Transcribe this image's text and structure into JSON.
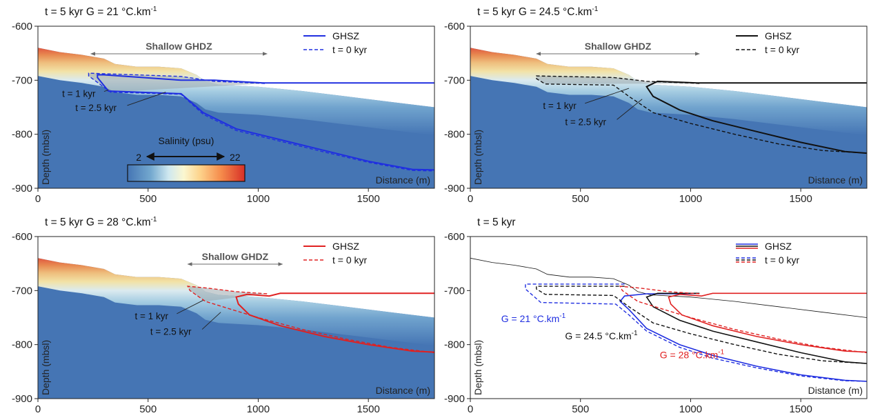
{
  "colors": {
    "sediment": "#4575b4",
    "g21": "#1f2ee0",
    "g24": "#111111",
    "g28": "#e02020",
    "gray": "#6b6b6b"
  },
  "chart_data": [
    {
      "type": "area",
      "title": "t = 5 kyr  G = 21 °C.km",
      "title_sup": "-1",
      "xlabel": "Distance (m)",
      "ylabel": "Depth (mbsl)",
      "xlim": [
        0,
        1800
      ],
      "ylim": [
        -900,
        -600
      ],
      "xticks": [
        "0",
        "500",
        "1000",
        "1500"
      ],
      "yticks": [
        "-600",
        "-700",
        "-800",
        "-900"
      ],
      "series_color": "g21",
      "legend": [
        "GHSZ",
        "t = 0 kyr"
      ],
      "ghdz": {
        "label": "Shallow GHDZ",
        "from": 240,
        "to": 1040
      },
      "seafloor": [
        [
          0,
          -640
        ],
        [
          100,
          -648
        ],
        [
          200,
          -653
        ],
        [
          300,
          -660
        ],
        [
          350,
          -670
        ],
        [
          450,
          -675
        ],
        [
          550,
          -675
        ],
        [
          650,
          -678
        ],
        [
          720,
          -690
        ],
        [
          760,
          -702
        ],
        [
          820,
          -708
        ],
        [
          1000,
          -712
        ],
        [
          1200,
          -720
        ],
        [
          1400,
          -730
        ],
        [
          1600,
          -740
        ],
        [
          1800,
          -750
        ]
      ],
      "ghsz": [
        [
          1800,
          -705
        ],
        [
          1030,
          -705
        ],
        [
          800,
          -700
        ],
        [
          650,
          -700
        ],
        [
          300,
          -690
        ],
        [
          270,
          -690
        ],
        [
          270,
          -695
        ],
        [
          320,
          -720
        ],
        [
          650,
          -725
        ],
        [
          750,
          -760
        ],
        [
          900,
          -790
        ],
        [
          1100,
          -810
        ],
        [
          1300,
          -830
        ],
        [
          1500,
          -850
        ],
        [
          1700,
          -865
        ],
        [
          1800,
          -866
        ]
      ],
      "t0": [
        [
          1030,
          -706
        ],
        [
          800,
          -702
        ],
        [
          650,
          -693
        ],
        [
          230,
          -687
        ],
        [
          230,
          -692
        ],
        [
          330,
          -722
        ],
        [
          650,
          -726
        ],
        [
          750,
          -763
        ],
        [
          900,
          -793
        ],
        [
          1100,
          -813
        ],
        [
          1300,
          -833
        ],
        [
          1500,
          -852
        ],
        [
          1700,
          -867
        ],
        [
          1800,
          -868
        ]
      ],
      "annotations": [
        {
          "text": "t = 1 kyr",
          "x": 110,
          "y": -731,
          "tx": 320,
          "ty": -718
        },
        {
          "text": "t = 2.5 kyr",
          "x": 170,
          "y": -757,
          "tx": 580,
          "ty": -722
        }
      ],
      "colorbar": {
        "title": "Salinity (psu)",
        "min": "2",
        "max": "22"
      }
    },
    {
      "type": "area",
      "title": "t = 5 kyr  G = 24.5 °C.km",
      "title_sup": "-1",
      "xlabel": "Distance (m)",
      "ylabel": "Depth (mbsl)",
      "xlim": [
        0,
        1800
      ],
      "ylim": [
        -900,
        -600
      ],
      "xticks": [
        "0",
        "500",
        "1000",
        "1500"
      ],
      "yticks": [
        "-600",
        "-700",
        "-800",
        "-900"
      ],
      "series_color": "g24",
      "legend": [
        "GHSZ",
        "t = 0 kyr"
      ],
      "ghdz": {
        "label": "Shallow GHDZ",
        "from": 300,
        "to": 1040
      },
      "seafloor": [
        [
          0,
          -640
        ],
        [
          100,
          -648
        ],
        [
          200,
          -653
        ],
        [
          300,
          -660
        ],
        [
          350,
          -670
        ],
        [
          450,
          -675
        ],
        [
          550,
          -675
        ],
        [
          650,
          -678
        ],
        [
          720,
          -690
        ],
        [
          760,
          -702
        ],
        [
          820,
          -708
        ],
        [
          1000,
          -712
        ],
        [
          1200,
          -720
        ],
        [
          1400,
          -730
        ],
        [
          1600,
          -740
        ],
        [
          1800,
          -750
        ]
      ],
      "ghsz": [
        [
          1800,
          -705
        ],
        [
          1030,
          -705
        ],
        [
          850,
          -702
        ],
        [
          800,
          -712
        ],
        [
          830,
          -730
        ],
        [
          950,
          -755
        ],
        [
          1100,
          -775
        ],
        [
          1300,
          -795
        ],
        [
          1500,
          -815
        ],
        [
          1700,
          -832
        ],
        [
          1800,
          -835
        ]
      ],
      "t0": [
        [
          1040,
          -706
        ],
        [
          800,
          -702
        ],
        [
          650,
          -695
        ],
        [
          300,
          -692
        ],
        [
          300,
          -697
        ],
        [
          340,
          -707
        ],
        [
          650,
          -709
        ],
        [
          720,
          -730
        ],
        [
          830,
          -760
        ],
        [
          1000,
          -780
        ],
        [
          1200,
          -800
        ],
        [
          1400,
          -818
        ],
        [
          1600,
          -830
        ],
        [
          1800,
          -835
        ]
      ],
      "annotations": [
        {
          "text": "t = 1 kyr",
          "x": 330,
          "y": -753,
          "tx": 720,
          "ty": -715
        },
        {
          "text": "t = 2.5 kyr",
          "x": 430,
          "y": -783,
          "tx": 780,
          "ty": -735
        }
      ],
      "colorbar": null
    },
    {
      "type": "area",
      "title": "t = 5 kyr  G = 28 °C.km",
      "title_sup": "-1",
      "xlabel": "Distance (m)",
      "ylabel": "Depth (mbsl)",
      "xlim": [
        0,
        1800
      ],
      "ylim": [
        -900,
        -600
      ],
      "xticks": [
        "0",
        "500",
        "1000",
        "1500"
      ],
      "yticks": [
        "-600",
        "-700",
        "-800",
        "-900"
      ],
      "series_color": "g28",
      "legend": [
        "GHSZ",
        "t = 0 kyr"
      ],
      "ghdz": {
        "label": "Shallow GHDZ",
        "from": 680,
        "to": 1110
      },
      "seafloor": [
        [
          0,
          -640
        ],
        [
          100,
          -648
        ],
        [
          200,
          -653
        ],
        [
          300,
          -660
        ],
        [
          350,
          -670
        ],
        [
          450,
          -675
        ],
        [
          550,
          -675
        ],
        [
          650,
          -678
        ],
        [
          720,
          -690
        ],
        [
          760,
          -702
        ],
        [
          820,
          -708
        ],
        [
          1000,
          -712
        ],
        [
          1200,
          -720
        ],
        [
          1400,
          -730
        ],
        [
          1600,
          -740
        ],
        [
          1800,
          -750
        ]
      ],
      "ghsz": [
        [
          1800,
          -705
        ],
        [
          1100,
          -705
        ],
        [
          1050,
          -710
        ],
        [
          950,
          -707
        ],
        [
          900,
          -712
        ],
        [
          910,
          -725
        ],
        [
          960,
          -745
        ],
        [
          1100,
          -765
        ],
        [
          1300,
          -785
        ],
        [
          1500,
          -800
        ],
        [
          1700,
          -812
        ],
        [
          1800,
          -814
        ]
      ],
      "t0": [
        [
          1040,
          -706
        ],
        [
          900,
          -702
        ],
        [
          760,
          -695
        ],
        [
          680,
          -692
        ],
        [
          690,
          -700
        ],
        [
          760,
          -720
        ],
        [
          880,
          -735
        ],
        [
          1000,
          -750
        ],
        [
          1200,
          -772
        ],
        [
          1400,
          -790
        ],
        [
          1600,
          -805
        ],
        [
          1800,
          -815
        ]
      ],
      "annotations": [
        {
          "text": "t = 1 kyr",
          "x": 440,
          "y": -753,
          "tx": 750,
          "ty": -718
        },
        {
          "text": "t = 2.5 kyr",
          "x": 510,
          "y": -782,
          "tx": 830,
          "ty": -740
        }
      ],
      "colorbar": null
    },
    {
      "type": "line",
      "title": "t = 5 kyr",
      "title_sup": "",
      "xlabel": "Distance (m)",
      "ylabel": "Depth (mbsl)",
      "xlim": [
        0,
        1800
      ],
      "ylim": [
        -900,
        -600
      ],
      "xticks": [
        "0",
        "500",
        "1000",
        "1500"
      ],
      "yticks": [
        "-600",
        "-700",
        "-800",
        "-900"
      ],
      "legend": [
        "GHSZ",
        "t = 0 kyr"
      ],
      "seafloor": [
        [
          0,
          -640
        ],
        [
          100,
          -648
        ],
        [
          200,
          -653
        ],
        [
          300,
          -660
        ],
        [
          350,
          -670
        ],
        [
          450,
          -675
        ],
        [
          550,
          -675
        ],
        [
          650,
          -678
        ],
        [
          720,
          -690
        ],
        [
          760,
          -702
        ],
        [
          820,
          -708
        ],
        [
          1000,
          -712
        ],
        [
          1200,
          -720
        ],
        [
          1400,
          -730
        ],
        [
          1600,
          -740
        ],
        [
          1800,
          -750
        ]
      ],
      "series": [
        {
          "color": "g21",
          "ghsz": [
            [
              1040,
              -705
            ],
            [
              950,
              -706
            ],
            [
              800,
              -706
            ],
            [
              700,
              -710
            ],
            [
              680,
              -720
            ],
            [
              720,
              -735
            ],
            [
              800,
              -770
            ],
            [
              950,
              -800
            ],
            [
              1100,
              -820
            ],
            [
              1300,
              -840
            ],
            [
              1500,
              -856
            ],
            [
              1700,
              -866
            ],
            [
              1800,
              -868
            ]
          ],
          "t0": [
            [
              700,
              -688
            ],
            [
              250,
              -688
            ],
            [
              250,
              -697
            ],
            [
              320,
              -722
            ],
            [
              660,
              -725
            ],
            [
              720,
              -745
            ],
            [
              800,
              -775
            ],
            [
              950,
              -805
            ],
            [
              1100,
              -825
            ],
            [
              1300,
              -843
            ],
            [
              1500,
              -858
            ],
            [
              1700,
              -867
            ],
            [
              1800,
              -868
            ]
          ]
        },
        {
          "color": "g24",
          "ghsz": [
            [
              1040,
              -705
            ],
            [
              850,
              -705
            ],
            [
              800,
              -712
            ],
            [
              830,
              -730
            ],
            [
              950,
              -755
            ],
            [
              1100,
              -775
            ],
            [
              1300,
              -795
            ],
            [
              1500,
              -815
            ],
            [
              1700,
              -832
            ],
            [
              1800,
              -835
            ]
          ],
          "t0": [
            [
              700,
              -692
            ],
            [
              300,
              -692
            ],
            [
              300,
              -697
            ],
            [
              340,
              -707
            ],
            [
              650,
              -709
            ],
            [
              720,
              -730
            ],
            [
              830,
              -760
            ],
            [
              1000,
              -780
            ],
            [
              1200,
              -800
            ],
            [
              1400,
              -818
            ],
            [
              1600,
              -830
            ],
            [
              1800,
              -835
            ]
          ]
        },
        {
          "color": "g28",
          "ghsz": [
            [
              1800,
              -705
            ],
            [
              1100,
              -705
            ],
            [
              1050,
              -710
            ],
            [
              950,
              -707
            ],
            [
              900,
              -712
            ],
            [
              910,
              -725
            ],
            [
              960,
              -745
            ],
            [
              1100,
              -765
            ],
            [
              1300,
              -785
            ],
            [
              1500,
              -800
            ],
            [
              1700,
              -812
            ],
            [
              1800,
              -814
            ]
          ],
          "t0": [
            [
              1040,
              -706
            ],
            [
              900,
              -702
            ],
            [
              760,
              -695
            ],
            [
              680,
              -692
            ],
            [
              690,
              -700
            ],
            [
              760,
              -720
            ],
            [
              880,
              -735
            ],
            [
              1000,
              -750
            ],
            [
              1200,
              -772
            ],
            [
              1400,
              -790
            ],
            [
              1600,
              -805
            ],
            [
              1800,
              -815
            ]
          ]
        }
      ],
      "labels": [
        {
          "text": "G = 21 °C.km",
          "sup": "-1",
          "color": "g21",
          "x": 140,
          "y": -758
        },
        {
          "text": "G = 24.5 °C.km",
          "sup": "-1",
          "color": "g24",
          "x": 430,
          "y": -790
        },
        {
          "text": "G = 28 °C.km",
          "sup": "-1",
          "color": "g28",
          "x": 860,
          "y": -825
        }
      ]
    }
  ]
}
